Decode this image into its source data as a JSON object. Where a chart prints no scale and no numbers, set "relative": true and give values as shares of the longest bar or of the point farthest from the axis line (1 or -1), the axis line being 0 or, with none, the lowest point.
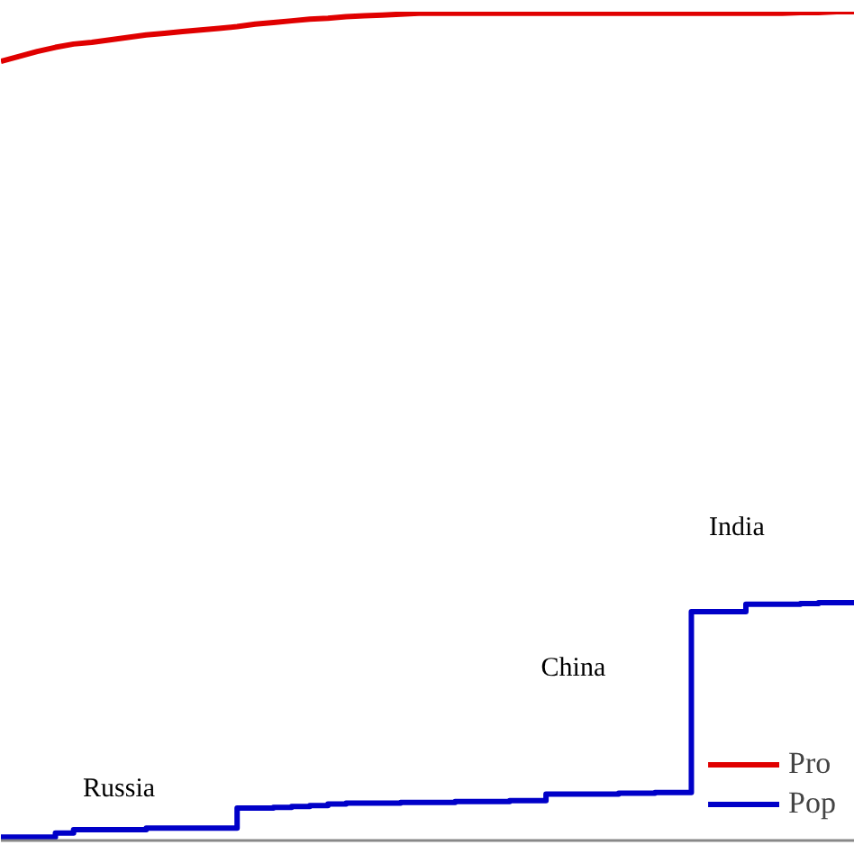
{
  "chart_data": {
    "type": "line",
    "relative": true,
    "categories": [
      null,
      null,
      null,
      null,
      null,
      null,
      null,
      null,
      null,
      null,
      null,
      null,
      null,
      null,
      null,
      null,
      null,
      null,
      null,
      null,
      null,
      null,
      null,
      null,
      null,
      null,
      null,
      null,
      null,
      null,
      null,
      null,
      null,
      null,
      null,
      null,
      null,
      null,
      null,
      null,
      null,
      null,
      null,
      null,
      null,
      null,
      null,
      null
    ],
    "series": [
      {
        "name": "Pro",
        "color": "#e00000",
        "values": [
          0.94,
          0.946,
          0.952,
          0.957,
          0.961,
          0.963,
          0.966,
          0.969,
          0.972,
          0.974,
          0.976,
          0.978,
          0.98,
          0.982,
          0.985,
          0.987,
          0.989,
          0.991,
          0.992,
          0.994,
          0.995,
          0.996,
          0.997,
          0.998,
          0.998,
          0.998,
          0.998,
          0.998,
          0.998,
          0.998,
          0.998,
          0.998,
          0.998,
          0.998,
          0.998,
          0.998,
          0.998,
          0.998,
          0.998,
          0.998,
          0.998,
          0.998,
          0.998,
          0.998,
          0.999,
          0.999,
          1.0,
          1.0
        ]
      },
      {
        "name": "Pop",
        "color": "#0000c8",
        "type": "step",
        "values": [
          0.004,
          0.004,
          0.004,
          0.009,
          0.013,
          0.013,
          0.013,
          0.013,
          0.015,
          0.015,
          0.015,
          0.015,
          0.015,
          0.039,
          0.039,
          0.04,
          0.041,
          0.042,
          0.044,
          0.045,
          0.045,
          0.045,
          0.046,
          0.046,
          0.046,
          0.047,
          0.047,
          0.047,
          0.048,
          0.048,
          0.056,
          0.056,
          0.056,
          0.056,
          0.057,
          0.057,
          0.058,
          0.058,
          0.276,
          0.276,
          0.276,
          0.285,
          0.285,
          0.285,
          0.286,
          0.287,
          0.287,
          0.289
        ]
      }
    ],
    "annotations": [
      "Russia",
      "China",
      "India"
    ],
    "legend": "bottom right",
    "grid": false
  }
}
